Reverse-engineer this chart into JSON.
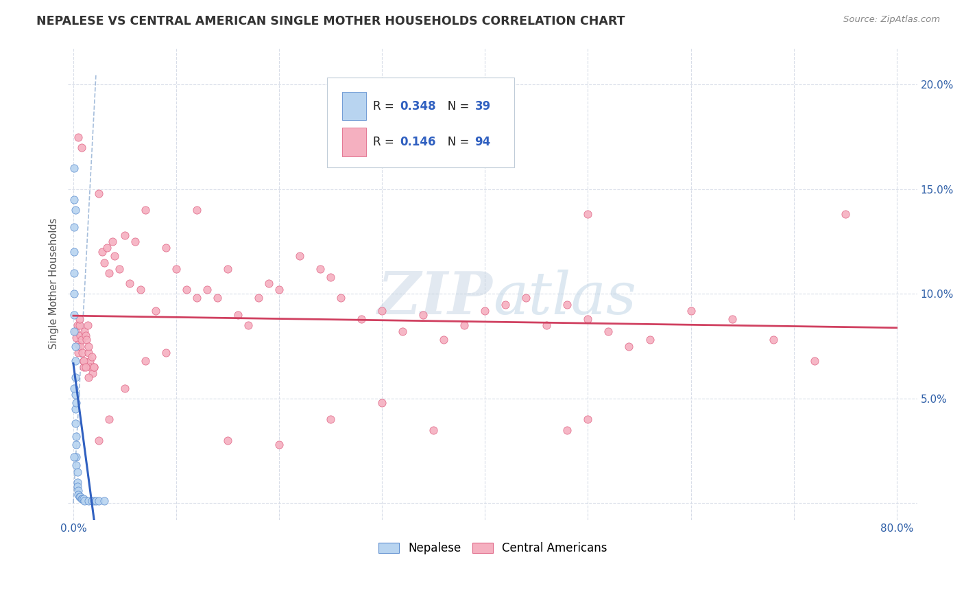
{
  "title": "NEPALESE VS CENTRAL AMERICAN SINGLE MOTHER HOUSEHOLDS CORRELATION CHART",
  "source": "Source: ZipAtlas.com",
  "ylabel": "Single Mother Households",
  "nepalese_R": "0.348",
  "nepalese_N": "39",
  "central_R": "0.146",
  "central_N": "94",
  "nepalese_fill": "#b8d4f0",
  "nepalese_edge": "#6090d0",
  "central_fill": "#f5b0c0",
  "central_edge": "#e06888",
  "nepalese_line_color": "#3060c0",
  "central_line_color": "#d04060",
  "ref_line_color": "#88a8d0",
  "background_color": "#ffffff",
  "grid_color": "#d8dde8",
  "title_color": "#333333",
  "axis_color": "#3060a8",
  "ylabel_color": "#555555",
  "source_color": "#888888",
  "watermark_color": "#c8d8ec",
  "legend_edge_color": "#c0ccd8",
  "nepalese_x": [
    0.001,
    0.001,
    0.001,
    0.001,
    0.001,
    0.001,
    0.001,
    0.001,
    0.002,
    0.002,
    0.002,
    0.002,
    0.002,
    0.002,
    0.003,
    0.003,
    0.003,
    0.003,
    0.004,
    0.004,
    0.004,
    0.005,
    0.005,
    0.006,
    0.007,
    0.008,
    0.009,
    0.01,
    0.011,
    0.015,
    0.018,
    0.02,
    0.022,
    0.025,
    0.03,
    0.001,
    0.002,
    0.003,
    0.001
  ],
  "nepalese_y": [
    0.16,
    0.145,
    0.132,
    0.12,
    0.11,
    0.1,
    0.09,
    0.082,
    0.075,
    0.068,
    0.06,
    0.052,
    0.045,
    0.038,
    0.032,
    0.028,
    0.022,
    0.018,
    0.015,
    0.01,
    0.008,
    0.006,
    0.004,
    0.003,
    0.003,
    0.002,
    0.002,
    0.002,
    0.001,
    0.001,
    0.001,
    0.001,
    0.001,
    0.001,
    0.001,
    0.055,
    0.14,
    0.048,
    0.022
  ],
  "central_x": [
    0.002,
    0.003,
    0.004,
    0.005,
    0.005,
    0.006,
    0.006,
    0.007,
    0.007,
    0.008,
    0.009,
    0.01,
    0.01,
    0.011,
    0.012,
    0.013,
    0.014,
    0.015,
    0.015,
    0.016,
    0.017,
    0.018,
    0.019,
    0.02,
    0.025,
    0.028,
    0.03,
    0.033,
    0.035,
    0.038,
    0.04,
    0.045,
    0.05,
    0.055,
    0.06,
    0.065,
    0.07,
    0.08,
    0.09,
    0.1,
    0.11,
    0.12,
    0.13,
    0.14,
    0.15,
    0.16,
    0.17,
    0.18,
    0.19,
    0.2,
    0.22,
    0.24,
    0.25,
    0.26,
    0.28,
    0.3,
    0.32,
    0.34,
    0.36,
    0.38,
    0.4,
    0.42,
    0.44,
    0.46,
    0.48,
    0.5,
    0.52,
    0.54,
    0.56,
    0.6,
    0.64,
    0.68,
    0.72,
    0.5,
    0.48,
    0.005,
    0.008,
    0.01,
    0.012,
    0.015,
    0.02,
    0.025,
    0.035,
    0.05,
    0.07,
    0.09,
    0.12,
    0.15,
    0.2,
    0.25,
    0.3,
    0.35,
    0.5,
    0.75
  ],
  "central_y": [
    0.082,
    0.079,
    0.085,
    0.076,
    0.072,
    0.085,
    0.088,
    0.075,
    0.08,
    0.078,
    0.072,
    0.068,
    0.065,
    0.082,
    0.08,
    0.078,
    0.085,
    0.072,
    0.075,
    0.068,
    0.065,
    0.07,
    0.062,
    0.065,
    0.148,
    0.12,
    0.115,
    0.122,
    0.11,
    0.125,
    0.118,
    0.112,
    0.128,
    0.105,
    0.125,
    0.102,
    0.14,
    0.092,
    0.122,
    0.112,
    0.102,
    0.098,
    0.102,
    0.098,
    0.112,
    0.09,
    0.085,
    0.098,
    0.105,
    0.102,
    0.118,
    0.112,
    0.108,
    0.098,
    0.088,
    0.092,
    0.082,
    0.09,
    0.078,
    0.085,
    0.092,
    0.095,
    0.098,
    0.085,
    0.095,
    0.088,
    0.082,
    0.075,
    0.078,
    0.092,
    0.088,
    0.078,
    0.068,
    0.04,
    0.035,
    0.175,
    0.17,
    0.068,
    0.065,
    0.06,
    0.065,
    0.03,
    0.04,
    0.055,
    0.068,
    0.072,
    0.14,
    0.03,
    0.028,
    0.04,
    0.048,
    0.035,
    0.138,
    0.138
  ],
  "xlim": [
    -0.005,
    0.82
  ],
  "ylim": [
    -0.008,
    0.218
  ],
  "x_ticks": [
    0.0,
    0.1,
    0.2,
    0.3,
    0.4,
    0.5,
    0.6,
    0.7,
    0.8
  ],
  "x_tick_labels": [
    "0.0%",
    "",
    "",
    "",
    "",
    "",
    "",
    "",
    "80.0%"
  ],
  "y_ticks": [
    0.0,
    0.05,
    0.1,
    0.15,
    0.2
  ],
  "y_tick_labels_right": [
    "",
    "5.0%",
    "10.0%",
    "15.0%",
    "20.0%"
  ]
}
